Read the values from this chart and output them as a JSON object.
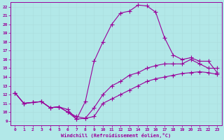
{
  "xlabel": "Windchill (Refroidissement éolien,°C)",
  "bg_color": "#b2e8e8",
  "line_color": "#990099",
  "xlim": [
    -0.5,
    23.5
  ],
  "ylim": [
    8.5,
    22.5
  ],
  "xticks": [
    0,
    1,
    2,
    3,
    4,
    5,
    6,
    7,
    8,
    9,
    10,
    11,
    12,
    13,
    14,
    15,
    16,
    17,
    18,
    19,
    20,
    21,
    22,
    23
  ],
  "yticks": [
    9,
    10,
    11,
    12,
    13,
    14,
    15,
    16,
    17,
    18,
    19,
    20,
    21,
    22
  ],
  "curve1_x": [
    0,
    1,
    2,
    3,
    4,
    5,
    6,
    7,
    8,
    9,
    10,
    11,
    12,
    13,
    14,
    15,
    16,
    17,
    18,
    19,
    20,
    21,
    22,
    23
  ],
  "curve1_y": [
    12.2,
    11.0,
    11.1,
    11.2,
    10.5,
    10.6,
    10.0,
    9.5,
    9.3,
    9.5,
    11.0,
    11.5,
    12.0,
    12.5,
    13.0,
    13.5,
    13.8,
    14.0,
    14.2,
    14.4,
    14.5,
    14.6,
    14.5,
    14.3
  ],
  "curve2_x": [
    0,
    1,
    2,
    3,
    4,
    5,
    6,
    7,
    8,
    9,
    10,
    11,
    12,
    13,
    14,
    15,
    16,
    17,
    18,
    19,
    20,
    21,
    22,
    23
  ],
  "curve2_y": [
    12.2,
    11.0,
    11.1,
    11.2,
    10.5,
    10.6,
    10.3,
    9.2,
    9.3,
    10.5,
    12.0,
    13.0,
    13.5,
    14.2,
    14.5,
    15.0,
    15.3,
    15.5,
    15.5,
    15.5,
    16.0,
    15.5,
    15.0,
    15.0
  ],
  "curve3_x": [
    0,
    1,
    2,
    3,
    4,
    5,
    6,
    7,
    8,
    9,
    10,
    11,
    12,
    13,
    14,
    15,
    16,
    17,
    18,
    19,
    20,
    21,
    22,
    23
  ],
  "curve3_y": [
    12.2,
    11.0,
    11.1,
    11.2,
    10.5,
    10.6,
    10.0,
    9.2,
    11.2,
    15.8,
    18.0,
    20.0,
    21.3,
    21.5,
    22.2,
    22.1,
    21.4,
    18.5,
    16.5,
    16.0,
    16.2,
    15.8,
    15.8,
    14.5
  ],
  "grid_color": "#cceeee",
  "marker": "+",
  "marker_size": 4,
  "line_width": 0.8
}
